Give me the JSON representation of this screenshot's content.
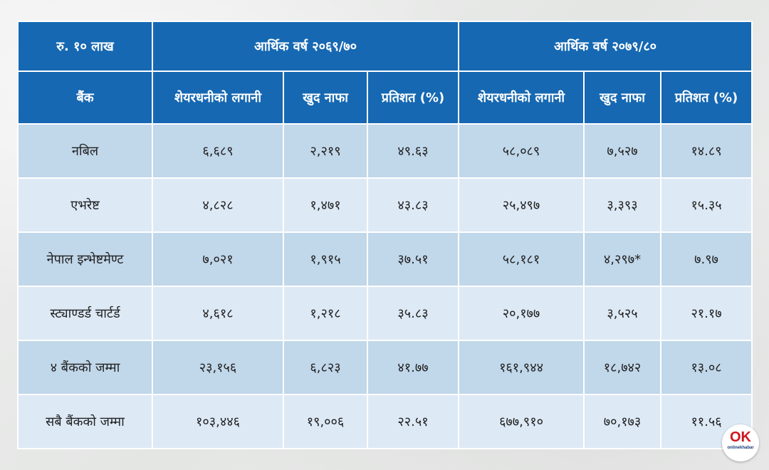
{
  "table": {
    "unit_label": "रु. १० लाख",
    "group_a": "आर्थिक वर्ष २०६९/७०",
    "group_b": "आर्थिक वर्ष २०७९/८०",
    "col_bank": "बैंक",
    "col_investment": "शेयरधनीको लगानी",
    "col_profit": "खुद नाफा",
    "col_percent": "प्रतिशत (%)",
    "rows": [
      {
        "bank": "नबिल",
        "a_inv": "६,६८९",
        "a_profit": "२,२१९",
        "a_pct": "४९.६३",
        "b_inv": "५८,०८९",
        "b_profit": "७,५२७",
        "b_pct": "१४.८९"
      },
      {
        "bank": "एभरेष्ट",
        "a_inv": "४,८२८",
        "a_profit": "१,४७१",
        "a_pct": "४३.८३",
        "b_inv": "२५,४९७",
        "b_profit": "३,३९३",
        "b_pct": "१५.३५"
      },
      {
        "bank": "नेपाल इन्भेष्टमेण्ट",
        "a_inv": "७,०२१",
        "a_profit": "१,९१५",
        "a_pct": "३७.५१",
        "b_inv": "५८,१८१",
        "b_profit": "४,२९७*",
        "b_pct": "७.९७"
      },
      {
        "bank": "स्ट्याण्डर्ड चार्टर्ड",
        "a_inv": "४,६१८",
        "a_profit": "१,२१८",
        "a_pct": "३५.८३",
        "b_inv": "२०,१७७",
        "b_profit": "३,५२५",
        "b_pct": "२१.१७"
      },
      {
        "bank": "४ बैंकको जम्मा",
        "a_inv": "२३,१५६",
        "a_profit": "६,८२३",
        "a_pct": "४१.७७",
        "b_inv": "१६१,९४४",
        "b_profit": "१८,७४२",
        "b_pct": "१३.०८"
      },
      {
        "bank": "सबै बैंकको जम्मा",
        "a_inv": "१०३,४४६",
        "a_profit": "१९,००६",
        "a_pct": "२२.५१",
        "b_inv": "६७७,९१०",
        "b_profit": "७०,१७३",
        "b_pct": "११.५६"
      }
    ]
  },
  "brand": {
    "mark": "OK",
    "name": "onlinekhabar"
  },
  "colors": {
    "header": "#1668b2",
    "row_odd": "#c1d7ea",
    "row_even": "#dde9f5"
  }
}
